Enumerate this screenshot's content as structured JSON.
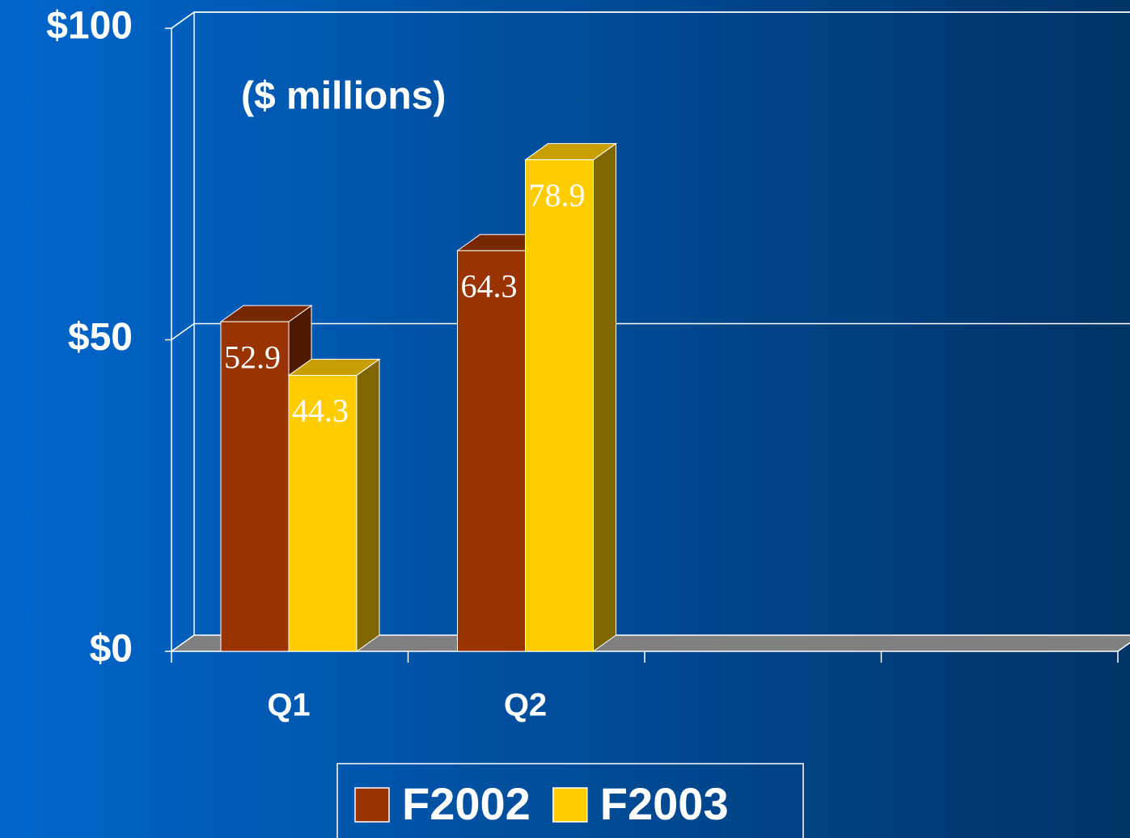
{
  "chart_data": {
    "type": "bar3d",
    "annotation": "($ millions)",
    "categories": [
      "Q1",
      "Q2",
      null,
      null
    ],
    "series": [
      {
        "name": "F2002",
        "color": "#993300",
        "values": [
          52.9,
          64.3,
          null,
          null
        ]
      },
      {
        "name": "F2003",
        "color": "#ffcc00",
        "values": [
          44.3,
          78.9,
          null,
          null
        ]
      }
    ],
    "ylim": [
      0,
      100
    ],
    "yticks": [
      {
        "value": 0,
        "label": "$0"
      },
      {
        "value": 50,
        "label": "$50"
      },
      {
        "value": 100,
        "label": "$100"
      }
    ],
    "grid": true,
    "legend": "bottom"
  }
}
